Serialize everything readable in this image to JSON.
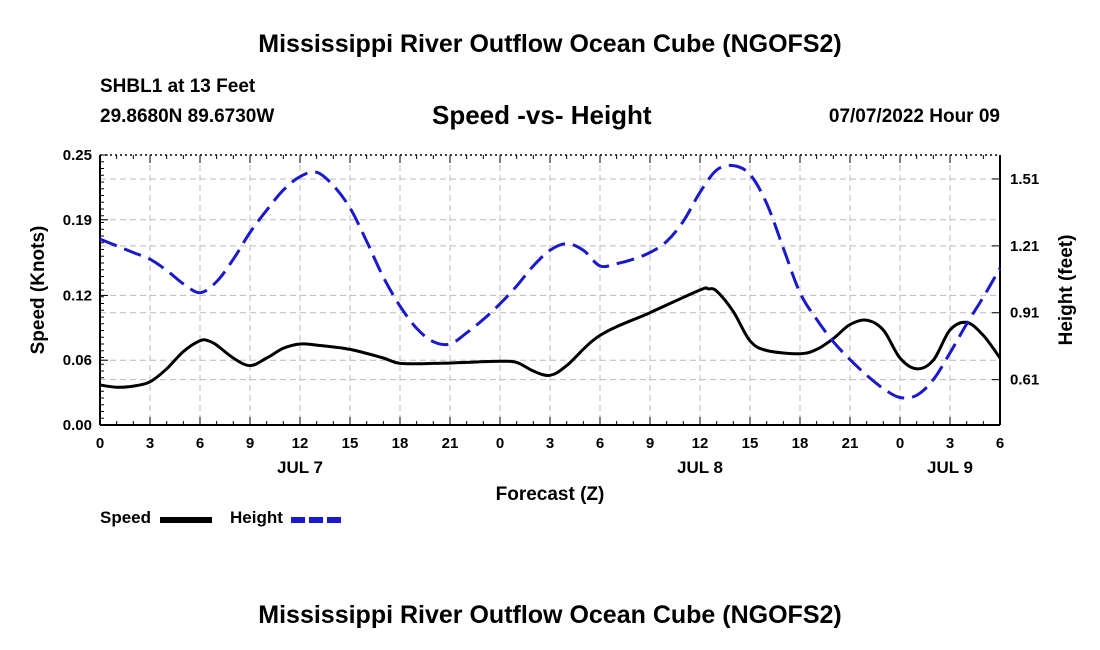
{
  "header": {
    "title": "Mississippi River Outflow Ocean Cube (NGOFS2)",
    "station_name": "SHBL1 at 13 Feet",
    "station_coords": "29.8680N  89.6730W",
    "chart_title": "Speed -vs- Height",
    "forecast_date": "07/07/2022 Hour 09"
  },
  "legend": {
    "speed_label": "Speed",
    "height_label": "Height"
  },
  "footer": {
    "title": "Mississippi River Outflow Ocean Cube (NGOFS2)"
  },
  "colors": {
    "speed": "#000000",
    "height": "#1a1acc",
    "grid": "#bbbbbb"
  },
  "chart_data": {
    "type": "line",
    "xlabel": "Forecast (Z)",
    "x_range_hours": [
      0,
      54
    ],
    "x_tick_labels": [
      "0",
      "3",
      "6",
      "9",
      "12",
      "15",
      "18",
      "21",
      "0",
      "3",
      "6",
      "9",
      "12",
      "15",
      "18",
      "21",
      "0",
      "3",
      "6"
    ],
    "date_labels": [
      {
        "label": "JUL 7",
        "hour": 12
      },
      {
        "label": "JUL 8",
        "hour": 36
      },
      {
        "label": "JUL 9",
        "hour": 51
      }
    ],
    "y_left": {
      "label": "Speed (Knots)",
      "range": [
        0,
        0.25
      ],
      "ticks": [
        0.0,
        0.06,
        0.12,
        0.19,
        0.25
      ],
      "tick_labels": [
        "0.00",
        "0.06",
        "0.12",
        "0.19",
        "0.25"
      ]
    },
    "y_right": {
      "label": "Height (feet)",
      "range": [
        0.4066,
        1.6174
      ],
      "ticks": [
        0.61,
        0.91,
        1.21,
        1.51
      ],
      "tick_labels": [
        "0.61",
        "0.91",
        "1.21",
        "1.51"
      ]
    },
    "series": [
      {
        "name": "Speed",
        "axis": "left",
        "style": "solid",
        "x": [
          0,
          1,
          2,
          3,
          4,
          5,
          6,
          6.5,
          7,
          8,
          9,
          10,
          11,
          12,
          13,
          15,
          17,
          18,
          20,
          22,
          24,
          25,
          26,
          27,
          28,
          30,
          33,
          36,
          36.5,
          37,
          38,
          39,
          40,
          42,
          43,
          44,
          45,
          46,
          47,
          48,
          49,
          50,
          51,
          52,
          53,
          54
        ],
        "y": [
          0.037,
          0.035,
          0.036,
          0.04,
          0.052,
          0.068,
          0.078,
          0.078,
          0.074,
          0.062,
          0.055,
          0.062,
          0.071,
          0.075,
          0.074,
          0.07,
          0.062,
          0.057,
          0.057,
          0.058,
          0.059,
          0.058,
          0.05,
          0.046,
          0.055,
          0.083,
          0.104,
          0.125,
          0.126,
          0.124,
          0.105,
          0.078,
          0.069,
          0.066,
          0.07,
          0.08,
          0.093,
          0.097,
          0.088,
          0.062,
          0.052,
          0.06,
          0.088,
          0.095,
          0.083,
          0.062
        ]
      },
      {
        "name": "Height",
        "axis": "right",
        "style": "dashed",
        "x": [
          0,
          1,
          2,
          3,
          4,
          5,
          6,
          7,
          8,
          9,
          10,
          11,
          12,
          13,
          14,
          15,
          16,
          17,
          18,
          19,
          20,
          21,
          22,
          23,
          24,
          25,
          26,
          27,
          28,
          29,
          30,
          31,
          32,
          33,
          34,
          35,
          36,
          37,
          38,
          39,
          40,
          41,
          42,
          43,
          44,
          45,
          46,
          47,
          48,
          49,
          50,
          51,
          52,
          53,
          54
        ],
        "y": [
          1.24,
          1.21,
          1.18,
          1.15,
          1.1,
          1.04,
          1.0,
          1.05,
          1.15,
          1.27,
          1.37,
          1.46,
          1.52,
          1.54,
          1.48,
          1.38,
          1.23,
          1.07,
          0.94,
          0.84,
          0.78,
          0.77,
          0.82,
          0.88,
          0.95,
          1.03,
          1.12,
          1.19,
          1.22,
          1.19,
          1.12,
          1.13,
          1.15,
          1.18,
          1.23,
          1.32,
          1.45,
          1.55,
          1.57,
          1.53,
          1.4,
          1.2,
          1.0,
          0.88,
          0.78,
          0.7,
          0.63,
          0.57,
          0.53,
          0.54,
          0.61,
          0.73,
          0.86,
          0.98,
          1.11
        ]
      }
    ]
  }
}
